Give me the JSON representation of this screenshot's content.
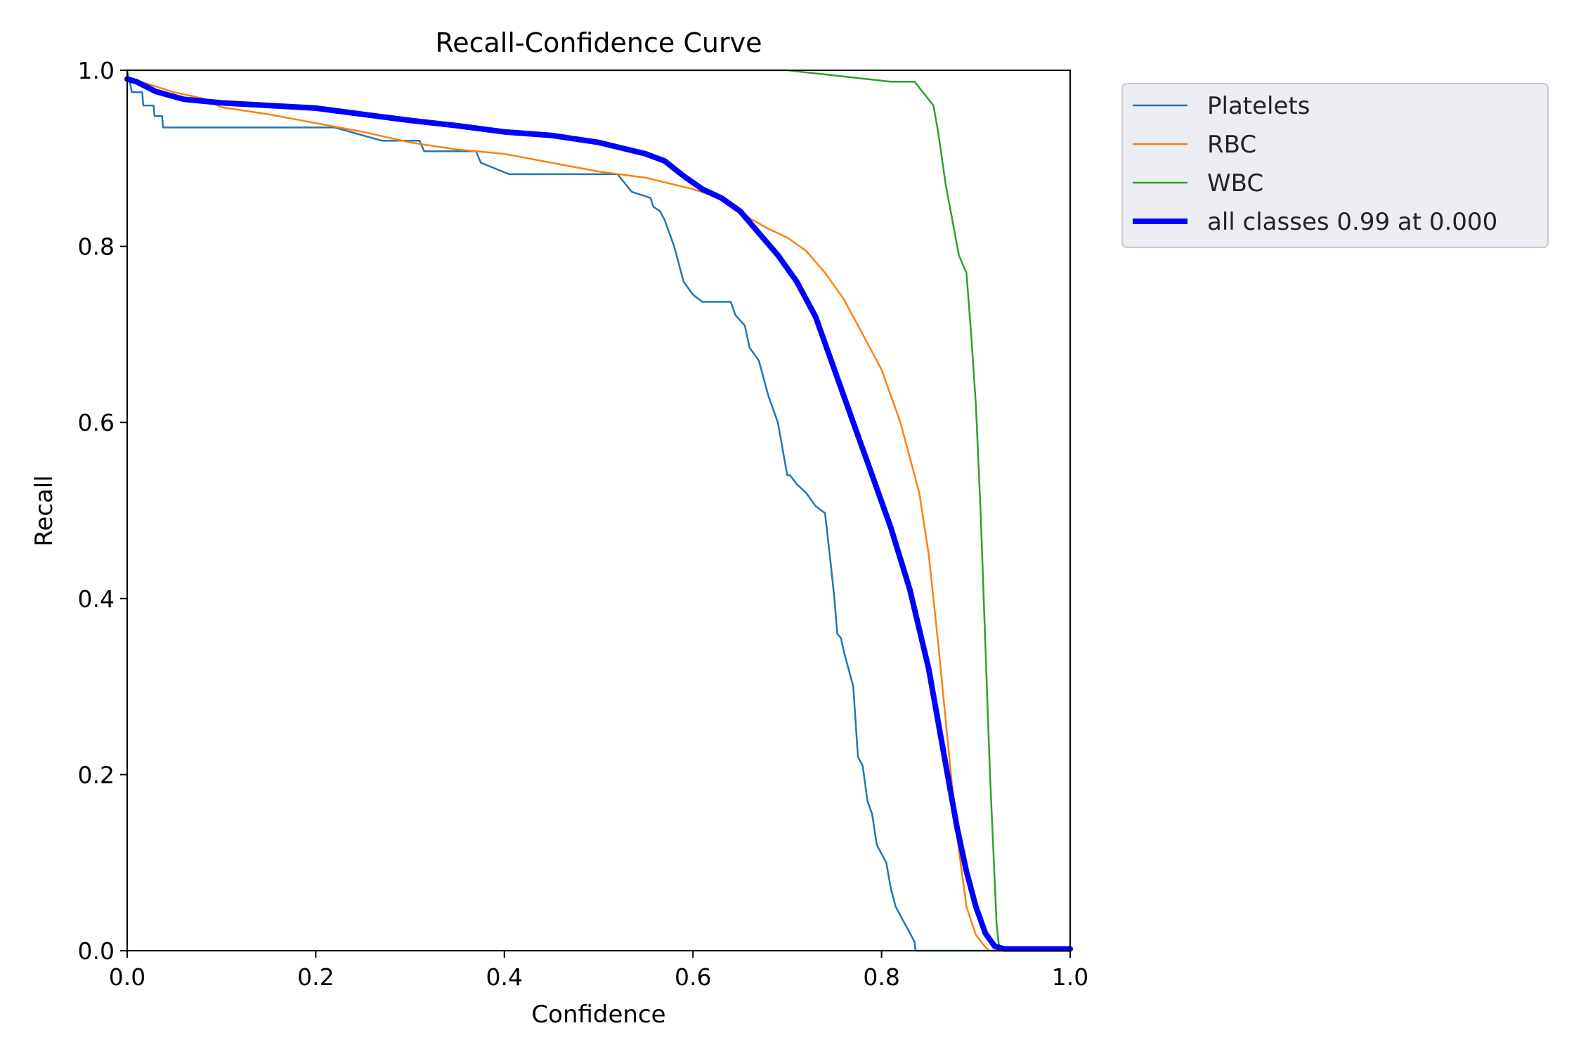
{
  "chart_data": {
    "type": "line",
    "title": "Recall-Confidence Curve",
    "xlabel": "Confidence",
    "ylabel": "Recall",
    "xlim": [
      0,
      1
    ],
    "ylim": [
      0,
      1
    ],
    "xticks": [
      "0.0",
      "0.2",
      "0.4",
      "0.6",
      "0.8",
      "1.0"
    ],
    "yticks": [
      "0.0",
      "0.2",
      "0.4",
      "0.6",
      "0.8",
      "1.0"
    ],
    "grid": false,
    "legend_position": "outside-top-right",
    "series": [
      {
        "name": "Platelets",
        "color": "#1f77b4",
        "linewidth": "thin",
        "x": [
          0.0,
          0.005,
          0.016,
          0.017,
          0.028,
          0.029,
          0.037,
          0.038,
          0.22,
          0.27,
          0.31,
          0.315,
          0.37,
          0.375,
          0.405,
          0.52,
          0.535,
          0.555,
          0.558,
          0.565,
          0.57,
          0.575,
          0.58,
          0.59,
          0.6,
          0.61,
          0.64,
          0.645,
          0.655,
          0.66,
          0.67,
          0.675,
          0.68,
          0.69,
          0.7,
          0.703,
          0.71,
          0.72,
          0.73,
          0.74,
          0.745,
          0.75,
          0.753,
          0.757,
          0.76,
          0.77,
          0.775,
          0.78,
          0.785,
          0.79,
          0.795,
          0.8,
          0.805,
          0.81,
          0.815,
          0.82,
          0.825,
          0.83,
          0.835,
          0.836,
          1.0
        ],
        "y": [
          1.0,
          0.975,
          0.975,
          0.96,
          0.96,
          0.948,
          0.948,
          0.935,
          0.935,
          0.92,
          0.92,
          0.908,
          0.908,
          0.895,
          0.882,
          0.882,
          0.862,
          0.855,
          0.845,
          0.84,
          0.83,
          0.815,
          0.8,
          0.76,
          0.745,
          0.737,
          0.737,
          0.722,
          0.71,
          0.685,
          0.67,
          0.65,
          0.63,
          0.6,
          0.54,
          0.54,
          0.53,
          0.52,
          0.505,
          0.497,
          0.45,
          0.4,
          0.36,
          0.355,
          0.34,
          0.3,
          0.22,
          0.21,
          0.17,
          0.155,
          0.12,
          0.11,
          0.1,
          0.07,
          0.05,
          0.04,
          0.03,
          0.02,
          0.01,
          0.0,
          0.0
        ]
      },
      {
        "name": "RBC",
        "color": "#ff7f0e",
        "linewidth": "thin",
        "x": [
          0.0,
          0.02,
          0.05,
          0.08,
          0.1,
          0.15,
          0.2,
          0.25,
          0.3,
          0.35,
          0.4,
          0.45,
          0.5,
          0.55,
          0.6,
          0.62,
          0.64,
          0.66,
          0.68,
          0.7,
          0.72,
          0.74,
          0.76,
          0.78,
          0.8,
          0.82,
          0.84,
          0.85,
          0.86,
          0.87,
          0.88,
          0.89,
          0.9,
          0.91,
          0.915,
          1.0
        ],
        "y": [
          0.99,
          0.985,
          0.975,
          0.968,
          0.958,
          0.95,
          0.94,
          0.93,
          0.918,
          0.91,
          0.905,
          0.895,
          0.885,
          0.878,
          0.865,
          0.858,
          0.85,
          0.832,
          0.82,
          0.81,
          0.795,
          0.77,
          0.74,
          0.7,
          0.66,
          0.6,
          0.52,
          0.45,
          0.35,
          0.24,
          0.13,
          0.05,
          0.018,
          0.004,
          0.0,
          0.0
        ]
      },
      {
        "name": "WBC",
        "color": "#2ca02c",
        "linewidth": "thin",
        "x": [
          0.0,
          0.7,
          0.81,
          0.835,
          0.855,
          0.86,
          0.868,
          0.875,
          0.882,
          0.89,
          0.895,
          0.9,
          0.905,
          0.91,
          0.915,
          0.92,
          0.922,
          0.925,
          1.0
        ],
        "y": [
          1.0,
          1.0,
          0.987,
          0.987,
          0.96,
          0.93,
          0.87,
          0.83,
          0.79,
          0.77,
          0.7,
          0.62,
          0.5,
          0.35,
          0.2,
          0.08,
          0.03,
          0.0,
          0.0
        ]
      },
      {
        "name": "all classes 0.99 at 0.000",
        "color": "#0000ff",
        "linewidth": "thick",
        "x": [
          0.0,
          0.01,
          0.03,
          0.06,
          0.1,
          0.15,
          0.2,
          0.25,
          0.3,
          0.35,
          0.4,
          0.45,
          0.5,
          0.55,
          0.57,
          0.59,
          0.61,
          0.63,
          0.65,
          0.67,
          0.69,
          0.71,
          0.73,
          0.75,
          0.77,
          0.79,
          0.81,
          0.83,
          0.85,
          0.87,
          0.88,
          0.89,
          0.9,
          0.91,
          0.92,
          0.93,
          0.94,
          0.95,
          1.0
        ],
        "y": [
          0.99,
          0.987,
          0.976,
          0.967,
          0.963,
          0.96,
          0.957,
          0.95,
          0.943,
          0.937,
          0.93,
          0.926,
          0.918,
          0.905,
          0.897,
          0.88,
          0.865,
          0.855,
          0.84,
          0.815,
          0.79,
          0.76,
          0.72,
          0.66,
          0.6,
          0.54,
          0.48,
          0.41,
          0.32,
          0.2,
          0.14,
          0.09,
          0.05,
          0.02,
          0.005,
          0.002,
          0.002,
          0.002,
          0.002
        ]
      }
    ]
  }
}
